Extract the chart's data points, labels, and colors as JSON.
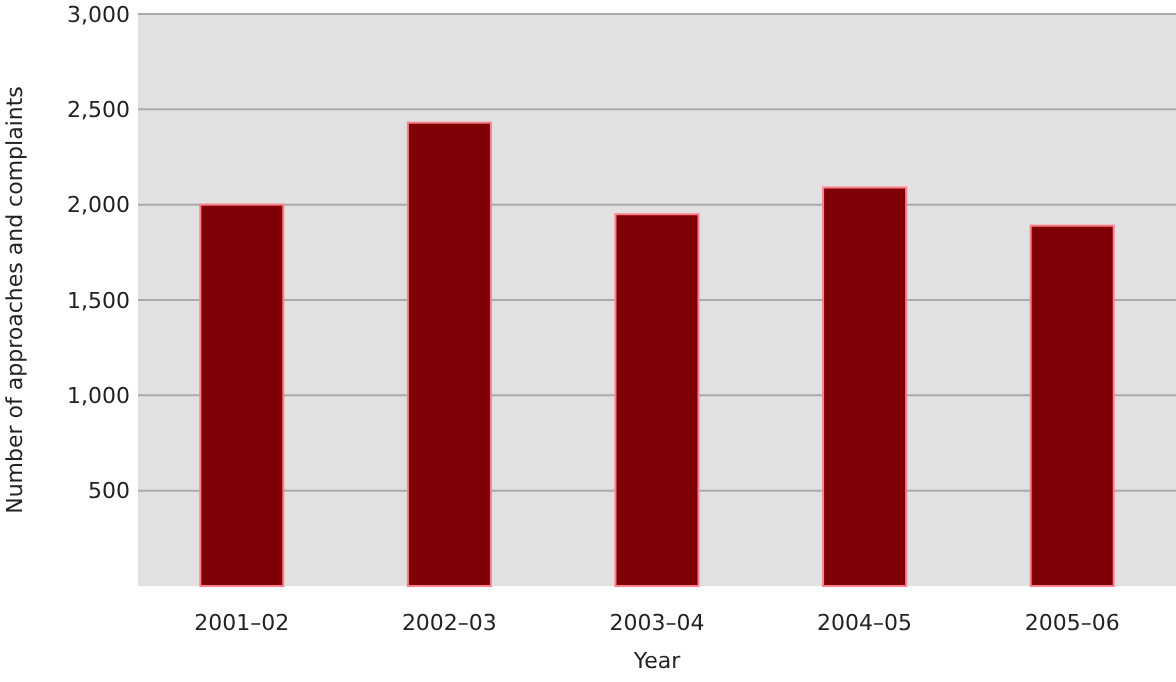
{
  "chart_data": {
    "type": "bar",
    "xlabel": "Year",
    "ylabel": "Number of approaches and complaints",
    "categories": [
      "2001–02",
      "2002–03",
      "2003–04",
      "2004–05",
      "2005–06"
    ],
    "values": [
      2000,
      2430,
      1950,
      2090,
      1890
    ],
    "color": "#800008",
    "ylim": [
      0,
      3000
    ],
    "yticks": [
      500,
      {
        "value": 1000,
        "label": "1,000"
      },
      {
        "value": 1500,
        "label": "1,500"
      },
      {
        "value": 2000,
        "label": "2,000"
      },
      {
        "value": 2500,
        "label": "2,500"
      },
      {
        "value": 3000,
        "label": "3,000"
      }
    ],
    "grid": "y"
  }
}
